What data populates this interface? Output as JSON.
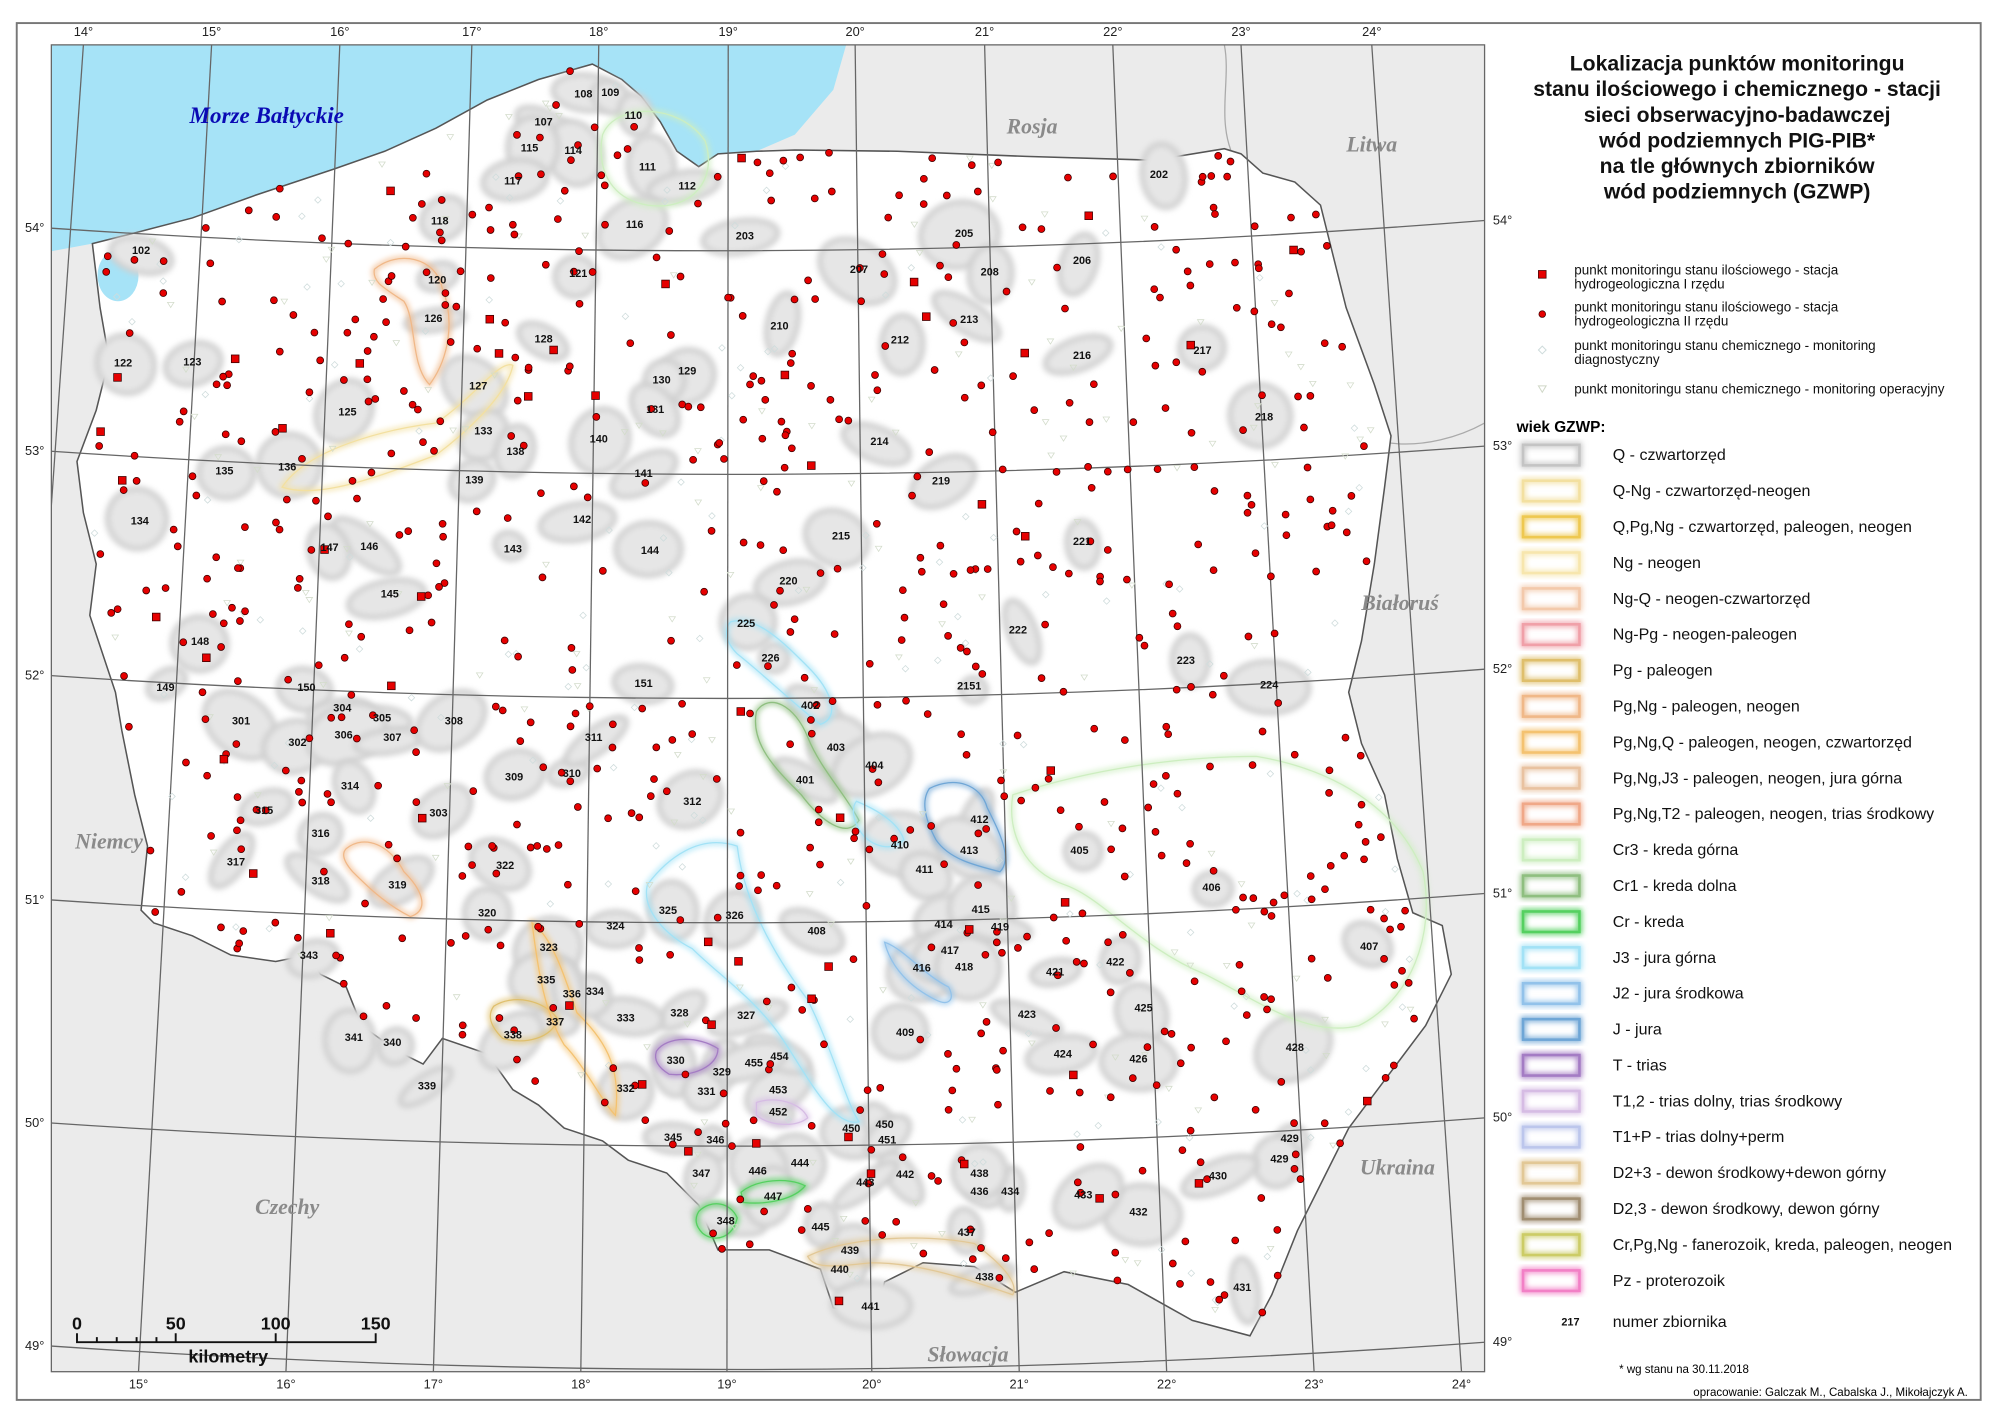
{
  "title_lines": [
    "Lokalizacja punktów monitoringu",
    "stanu ilościowego i chemicznego - stacji",
    "sieci obserwacyjno-badawczej",
    "wód podziemnych PIG-PIB*",
    "na tle głównych zbiorników",
    "wód podziemnych (GZWP)"
  ],
  "point_legend": [
    {
      "symbol": "red-square",
      "line1": "punkt monitoringu stanu ilościowego - stacja",
      "line2": "hydrogeologiczna I rzędu"
    },
    {
      "symbol": "red-dot",
      "line1": "punkt monitoringu stanu ilościowego - stacja",
      "line2": "hydrogeologiczna II rzędu"
    },
    {
      "symbol": "hollow-diamond",
      "line1": "punkt monitoringu stanu chemicznego - monitoring",
      "line2": "diagnostyczny"
    },
    {
      "symbol": "hollow-triangle",
      "line1": "punkt monitoringu stanu chemicznego - monitoring operacyjny",
      "line2": ""
    }
  ],
  "age_legend_title": "wiek GZWP:",
  "age_legend": [
    {
      "label": "Q - czwartorzęd",
      "color": "#c4c4c4"
    },
    {
      "label": "Q-Ng - czwartorzęd-neogen",
      "color": "#f3e0a0"
    },
    {
      "label": "Q,Pg,Ng - czwartorzęd, paleogen, neogen",
      "color": "#eec850"
    },
    {
      "label": "Ng - neogen",
      "color": "#f7e6ad"
    },
    {
      "label": "Ng-Q - neogen-czwartorzęd",
      "color": "#f3c9ab"
    },
    {
      "label": "Ng-Pg - neogen-paleogen",
      "color": "#f0a0a8"
    },
    {
      "label": "Pg - paleogen",
      "color": "#dfbf6c"
    },
    {
      "label": "Pg,Ng - paleogen, neogen",
      "color": "#f0b888"
    },
    {
      "label": "Pg,Ng,Q - paleogen, neogen, czwartorzęd",
      "color": "#f4c270"
    },
    {
      "label": "Pg,Ng,J3 - paleogen, neogen, jura górna",
      "color": "#e9c2a0"
    },
    {
      "label": "Pg,Ng,T2 - paleogen, neogen, trias środkowy",
      "color": "#f0a888"
    },
    {
      "label": "Cr3 - kreda górna",
      "color": "#cdeec0"
    },
    {
      "label": "Cr1 - kreda dolna",
      "color": "#8fbf80"
    },
    {
      "label": "Cr - kreda",
      "color": "#55d060"
    },
    {
      "label": "J3 - jura górna",
      "color": "#a2e2f6"
    },
    {
      "label": "J2 - jura środkowa",
      "color": "#92c2ea"
    },
    {
      "label": "J - jura",
      "color": "#6fa6d6"
    },
    {
      "label": "T - trias",
      "color": "#a47cc4"
    },
    {
      "label": "T1,2 - trias dolny, trias środkowy",
      "color": "#d6bce4"
    },
    {
      "label": "T1+P - trias dolny+perm",
      "color": "#bcc6ec"
    },
    {
      "label": "D2+3 - dewon środkowy+dewon górny",
      "color": "#e2c896"
    },
    {
      "label": "D2,3 - dewon środkowy, dewon górny",
      "color": "#a08e72"
    },
    {
      "label": "Cr,Pg,Ng - fanerozoik, kreda, paleogen, neogen",
      "color": "#cccc66"
    },
    {
      "label": "Pz - proterozoik",
      "color": "#f280c6"
    }
  ],
  "number_legend": {
    "sample": "217",
    "label": "numer zbiornika"
  },
  "footnote": "* wg stanu na 30.11.2018",
  "credits": "opracowanie: Galczak M., Cabalska J., Mikołajczyk A.",
  "colors": {
    "sea": "#a6e3f7",
    "neighbors": "#ebebeb",
    "poland": "#ffffff",
    "point_red": "#e60000"
  },
  "labels": {
    "sea": "Morze Bałtyckie",
    "countries": [
      "Rosja",
      "Litwa",
      "Białoruś",
      "Ukraina",
      "Słowacja",
      "Czechy",
      "Niemcy"
    ]
  },
  "graticule": {
    "meridians": [
      "14°",
      "15°",
      "16°",
      "17°",
      "18°",
      "19°",
      "20°",
      "21°",
      "22°",
      "23°",
      "24°"
    ],
    "meridians_bottom": [
      "15°",
      "16°",
      "17°",
      "18°",
      "19°",
      "20°",
      "21°",
      "22°",
      "23°",
      "24°"
    ],
    "parallels": [
      "54°",
      "53°",
      "52°",
      "51°",
      "50°",
      "49°"
    ]
  },
  "scale_bar": {
    "ticks": [
      "0",
      "50",
      "100",
      "150"
    ],
    "unit": "kilometry"
  },
  "reservoirs": [
    "102",
    "107",
    "108",
    "109",
    "110",
    "111",
    "112",
    "114",
    "115",
    "116",
    "117",
    "118",
    "120",
    "121",
    "122",
    "123",
    "125",
    "126",
    "127",
    "128",
    "129",
    "130",
    "131",
    "133",
    "134",
    "135",
    "136",
    "138",
    "139",
    "140",
    "141",
    "142",
    "143",
    "144",
    "145",
    "146",
    "147",
    "148",
    "149",
    "150",
    "151",
    "202",
    "203",
    "205",
    "206",
    "207",
    "208",
    "210",
    "212",
    "213",
    "214",
    "215",
    "216",
    "217",
    "218",
    "219",
    "220",
    "221",
    "222",
    "223",
    "224",
    "225",
    "226",
    "2151",
    "301",
    "302",
    "303",
    "304",
    "305",
    "306",
    "307",
    "308",
    "309",
    "310",
    "311",
    "312",
    "314",
    "315",
    "316",
    "317",
    "318",
    "319",
    "320",
    "322",
    "323",
    "324",
    "325",
    "326",
    "327",
    "328",
    "329",
    "330",
    "331",
    "332",
    "333",
    "334",
    "335",
    "336",
    "337",
    "338",
    "339",
    "340",
    "341",
    "343",
    "345",
    "346",
    "347",
    "348",
    "401",
    "402",
    "403",
    "404",
    "405",
    "406",
    "407",
    "408",
    "409",
    "410",
    "411",
    "412",
    "413",
    "414",
    "415",
    "416",
    "417",
    "418",
    "419",
    "421",
    "422",
    "423",
    "424",
    "425",
    "426",
    "428",
    "429",
    "429",
    "430",
    "431",
    "432",
    "433",
    "434",
    "436",
    "437",
    "438",
    "438",
    "439",
    "440",
    "441",
    "442",
    "443",
    "444",
    "445",
    "446",
    "447",
    "450",
    "450",
    "451",
    "452",
    "453",
    "454",
    "455"
  ]
}
